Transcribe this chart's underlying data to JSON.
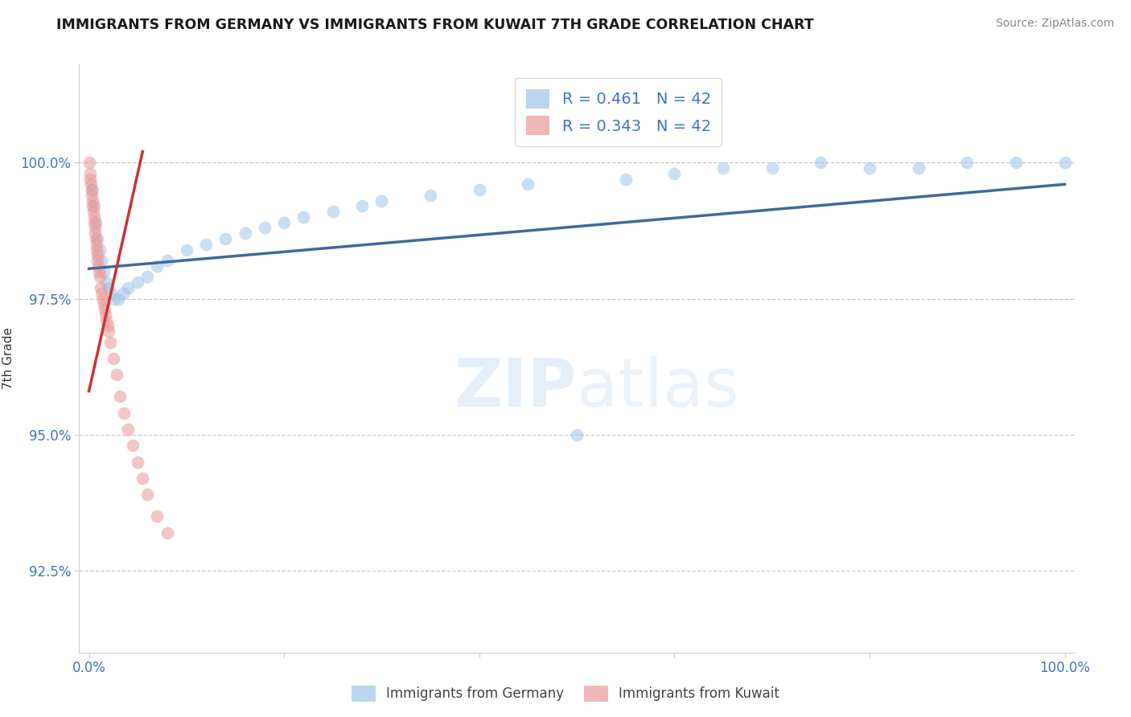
{
  "title": "IMMIGRANTS FROM GERMANY VS IMMIGRANTS FROM KUWAIT 7TH GRADE CORRELATION CHART",
  "source": "Source: ZipAtlas.com",
  "ylabel": "7th Grade",
  "xlim": [
    -1.0,
    101.0
  ],
  "ylim": [
    91.0,
    101.8
  ],
  "yticks": [
    92.5,
    95.0,
    97.5,
    100.0
  ],
  "ytick_labels": [
    "92.5%",
    "95.0%",
    "97.5%",
    "100.0%"
  ],
  "xtick_vals": [
    0,
    20,
    40,
    60,
    80,
    100
  ],
  "xtick_labels": [
    "0.0%",
    "",
    "",
    "",
    "",
    "100.0%"
  ],
  "blue_color": "#9fc5e8",
  "pink_color": "#ea9999",
  "trend_blue_color": "#3d6b9e",
  "trend_pink_color": "#cc3333",
  "legend_blue_label": "R = 0.461   N = 42",
  "legend_pink_label": "R = 0.343   N = 42",
  "bottom_legend_blue": "Immigrants from Germany",
  "bottom_legend_pink": "Immigrants from Kuwait",
  "watermark_text": "ZIPatlas",
  "blue_scatter_x": [
    0.3,
    0.5,
    0.7,
    0.9,
    1.1,
    1.3,
    1.5,
    1.8,
    2.0,
    2.3,
    2.6,
    3.0,
    3.5,
    4.0,
    5.0,
    6.0,
    7.0,
    8.0,
    10.0,
    12.0,
    14.0,
    16.0,
    18.0,
    20.0,
    22.0,
    25.0,
    28.0,
    30.0,
    35.0,
    40.0,
    45.0,
    50.0,
    55.0,
    60.0,
    65.0,
    70.0,
    75.0,
    80.0,
    85.0,
    90.0,
    95.0,
    100.0
  ],
  "blue_scatter_y": [
    99.5,
    99.2,
    98.9,
    98.6,
    98.4,
    98.2,
    98.0,
    97.8,
    97.7,
    97.6,
    97.5,
    97.5,
    97.6,
    97.7,
    97.8,
    97.9,
    98.1,
    98.2,
    98.4,
    98.5,
    98.6,
    98.7,
    98.8,
    98.9,
    99.0,
    99.1,
    99.2,
    99.3,
    99.4,
    99.5,
    99.6,
    95.0,
    99.7,
    99.8,
    99.9,
    99.9,
    100.0,
    99.9,
    99.9,
    100.0,
    100.0,
    100.0
  ],
  "pink_scatter_x": [
    0.05,
    0.1,
    0.15,
    0.2,
    0.25,
    0.3,
    0.35,
    0.4,
    0.45,
    0.5,
    0.55,
    0.6,
    0.65,
    0.7,
    0.75,
    0.8,
    0.85,
    0.9,
    0.95,
    1.0,
    1.1,
    1.2,
    1.3,
    1.4,
    1.5,
    1.6,
    1.7,
    1.8,
    1.9,
    2.0,
    2.2,
    2.5,
    2.8,
    3.2,
    3.6,
    4.0,
    4.5,
    5.0,
    5.5,
    6.0,
    7.0,
    8.0
  ],
  "pink_scatter_y": [
    100.0,
    99.8,
    99.7,
    99.6,
    99.5,
    99.4,
    99.3,
    99.2,
    99.1,
    99.0,
    98.9,
    98.8,
    98.7,
    98.6,
    98.5,
    98.4,
    98.3,
    98.2,
    98.1,
    98.0,
    97.9,
    97.7,
    97.6,
    97.5,
    97.4,
    97.3,
    97.2,
    97.1,
    97.0,
    96.9,
    96.7,
    96.4,
    96.1,
    95.7,
    95.4,
    95.1,
    94.8,
    94.5,
    94.2,
    93.9,
    93.5,
    93.2
  ],
  "blue_trend_x": [
    0,
    100
  ],
  "blue_trend_y": [
    98.05,
    99.6
  ],
  "pink_trend_x": [
    0,
    5.5
  ],
  "pink_trend_y": [
    95.8,
    100.2
  ]
}
